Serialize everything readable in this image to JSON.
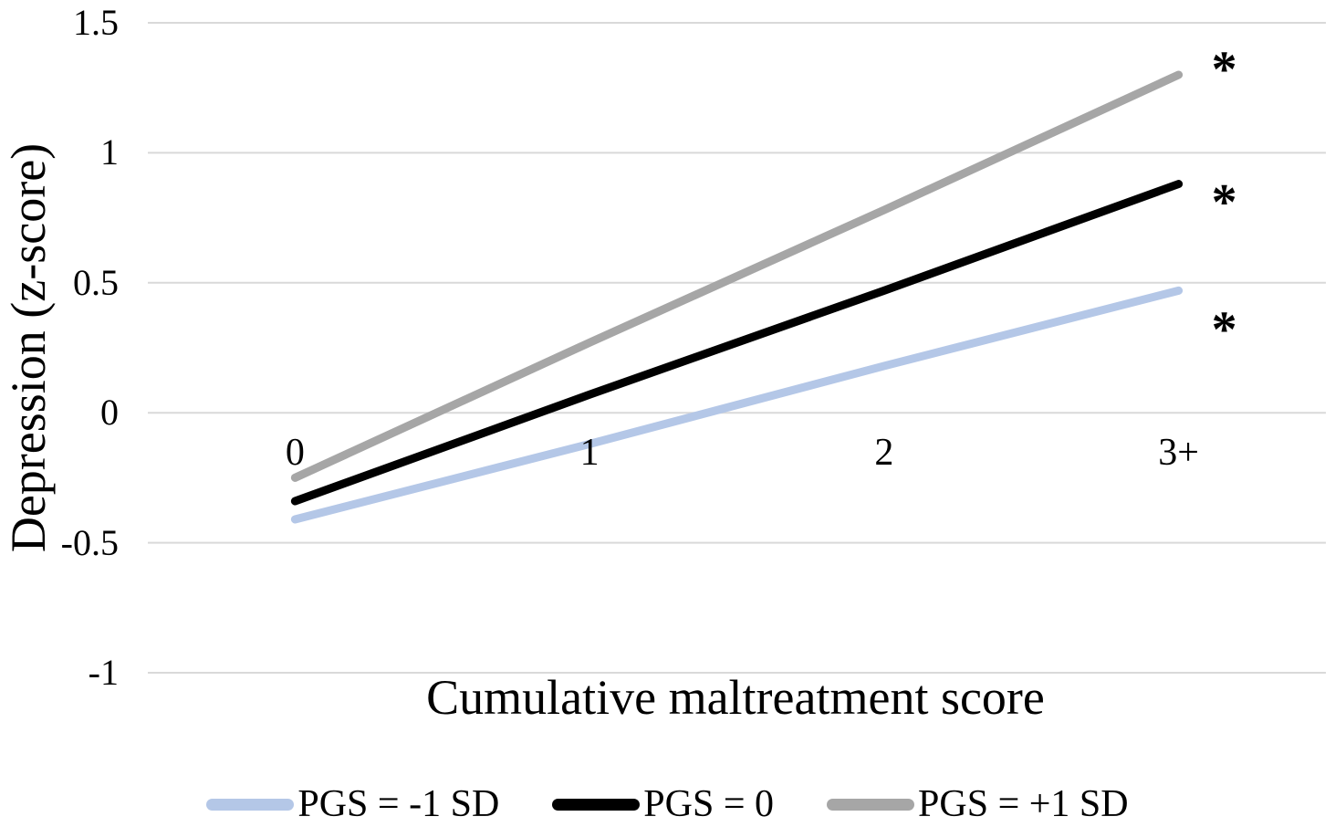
{
  "chart_data": {
    "type": "line",
    "title": "",
    "xlabel": "Cumulative maltreatment score",
    "ylabel": "Depression (z-score)",
    "categories": [
      "0",
      "1",
      "2",
      "3+"
    ],
    "series": [
      {
        "name": "PGS = -1 SD",
        "color": "#b4c7e7",
        "values": [
          -0.41,
          -0.12,
          0.18,
          0.47
        ]
      },
      {
        "name": "PGS = 0",
        "color": "#000000",
        "values": [
          -0.34,
          0.07,
          0.47,
          0.88
        ]
      },
      {
        "name": "PGS = +1 SD",
        "color": "#a6a6a6",
        "values": [
          -0.25,
          0.27,
          0.78,
          1.3
        ]
      }
    ],
    "annotations": [
      {
        "text": "*",
        "series": "PGS = +1 SD",
        "category": "3+",
        "y": 1.35
      },
      {
        "text": "*",
        "series": "PGS = 0",
        "category": "3+",
        "y": 0.84
      },
      {
        "text": "*",
        "series": "PGS = -1 SD",
        "category": "3+",
        "y": 0.35
      }
    ],
    "ylim": [
      -1,
      1.5
    ],
    "yticks": [
      1.5,
      1,
      0.5,
      0,
      -0.5,
      -1
    ],
    "ytick_labels": [
      "1.5",
      "1",
      "0.5",
      "0",
      "-0.5",
      "-1"
    ],
    "grid": true,
    "gridline_color": "#d9d9d9",
    "background_color": "#ffffff",
    "legend_position": "bottom"
  }
}
